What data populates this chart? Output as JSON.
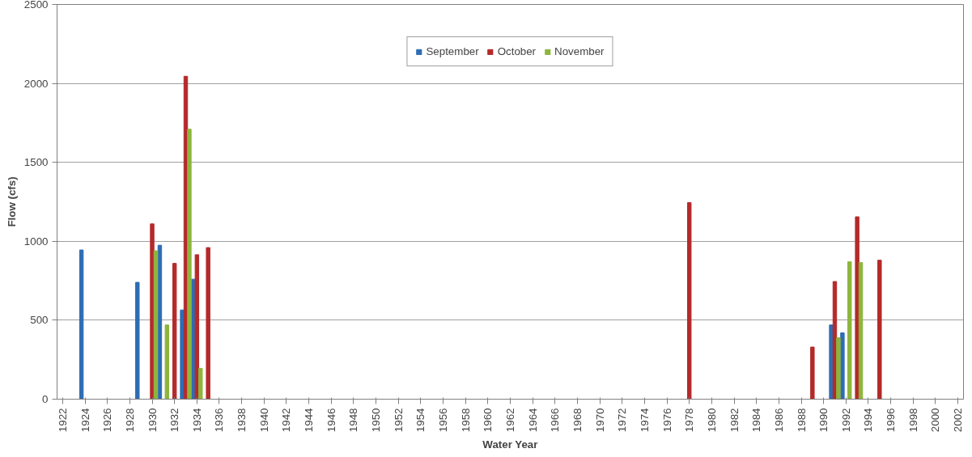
{
  "chart_data": {
    "type": "bar",
    "xlabel": "Water Year",
    "ylabel": "Flow (cfs)",
    "x": [
      1924,
      1929,
      1930,
      1931,
      1932,
      1933,
      1934,
      1935,
      1978,
      1989,
      1991,
      1992,
      1993,
      1995
    ],
    "series": [
      {
        "name": "September",
        "color": "#2e6db4",
        "values": [
          945,
          740,
          null,
          975,
          null,
          565,
          760,
          null,
          null,
          null,
          470,
          420,
          null,
          null
        ]
      },
      {
        "name": "October",
        "color": "#b42a2a",
        "values": [
          null,
          null,
          1110,
          null,
          860,
          2045,
          915,
          960,
          1245,
          330,
          745,
          null,
          1155,
          880
        ]
      },
      {
        "name": "November",
        "color": "#8db53c",
        "values": [
          null,
          null,
          940,
          470,
          null,
          1710,
          195,
          null,
          null,
          null,
          390,
          870,
          865,
          null
        ]
      }
    ],
    "xlim": [
      1921.5,
      2002.5
    ],
    "xticks": [
      1922,
      1924,
      1926,
      1928,
      1930,
      1932,
      1934,
      1936,
      1938,
      1940,
      1942,
      1944,
      1946,
      1948,
      1950,
      1952,
      1954,
      1956,
      1958,
      1960,
      1962,
      1964,
      1966,
      1968,
      1970,
      1972,
      1974,
      1976,
      1978,
      1980,
      1982,
      1984,
      1986,
      1988,
      1990,
      1992,
      1994,
      1996,
      1998,
      2000,
      2002
    ],
    "ylim": [
      0,
      2500
    ],
    "yticks": [
      0,
      500,
      1000,
      1500,
      2000,
      2500
    ],
    "grid": "y",
    "legend": "top"
  }
}
